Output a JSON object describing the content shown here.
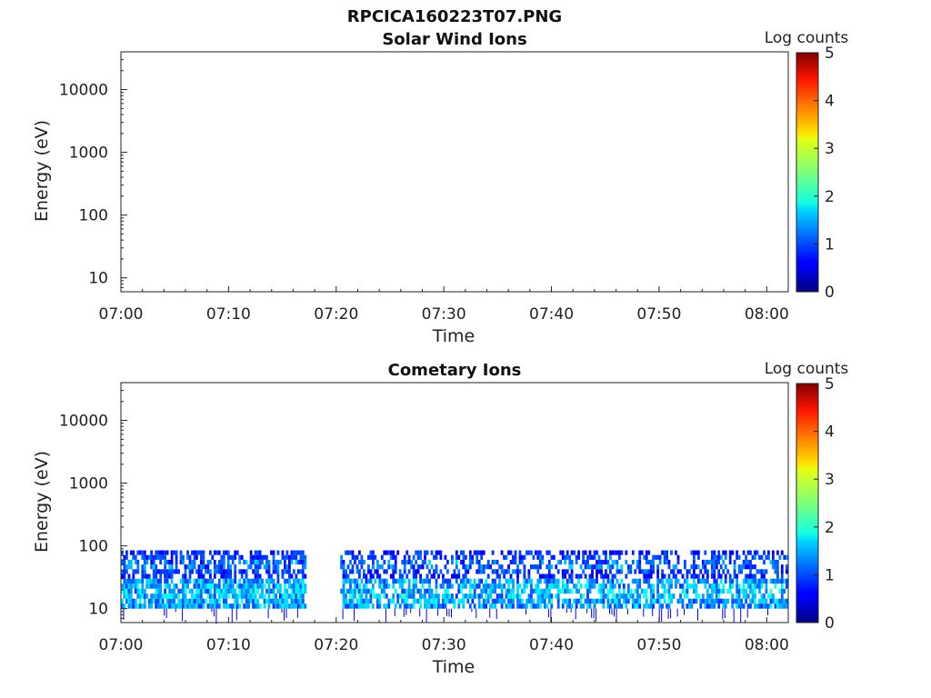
{
  "figure_title": "RPCICA160223T07.PNG",
  "chart_data": [
    {
      "type": "heatmap",
      "title": "Solar Wind Ions",
      "xlabel": "Time",
      "ylabel": "Energy (eV)",
      "x_ticks": [
        "07:00",
        "07:10",
        "07:20",
        "07:30",
        "07:40",
        "07:50",
        "08:00"
      ],
      "x_range_minutes": [
        0,
        62
      ],
      "y_scale": "log",
      "y_ticks": [
        "10",
        "100",
        "1000",
        "10000"
      ],
      "y_range": [
        6,
        40000
      ],
      "colorbar": {
        "label": "Log counts",
        "ticks": [
          "0",
          "1",
          "2",
          "3",
          "4",
          "5"
        ],
        "range": [
          0,
          5
        ],
        "colormap": "jet"
      },
      "data": []
    },
    {
      "type": "heatmap",
      "title": "Cometary Ions",
      "xlabel": "Time",
      "ylabel": "Energy (eV)",
      "x_ticks": [
        "07:00",
        "07:10",
        "07:20",
        "07:30",
        "07:40",
        "07:50",
        "08:00"
      ],
      "x_range_minutes": [
        0,
        62
      ],
      "y_scale": "log",
      "y_ticks": [
        "10",
        "100",
        "1000",
        "10000"
      ],
      "y_range": [
        6,
        40000
      ],
      "colorbar": {
        "label": "Log counts",
        "ticks": [
          "0",
          "1",
          "2",
          "3",
          "4",
          "5"
        ],
        "range": [
          0,
          5
        ],
        "colormap": "jet"
      },
      "data_gaps_minutes": [
        [
          17.1,
          20.3
        ]
      ],
      "energy_bands": [
        {
          "energy_range_eV": [
            10,
            30
          ],
          "peak_log_counts": 2.2,
          "typical_log_counts": 1.5,
          "time_range_minutes": [
            0,
            62
          ]
        },
        {
          "energy_range_eV": [
            30,
            85
          ],
          "peak_log_counts": 1.8,
          "typical_log_counts": 0.8,
          "time_range_minutes": [
            0,
            62
          ]
        }
      ]
    }
  ]
}
